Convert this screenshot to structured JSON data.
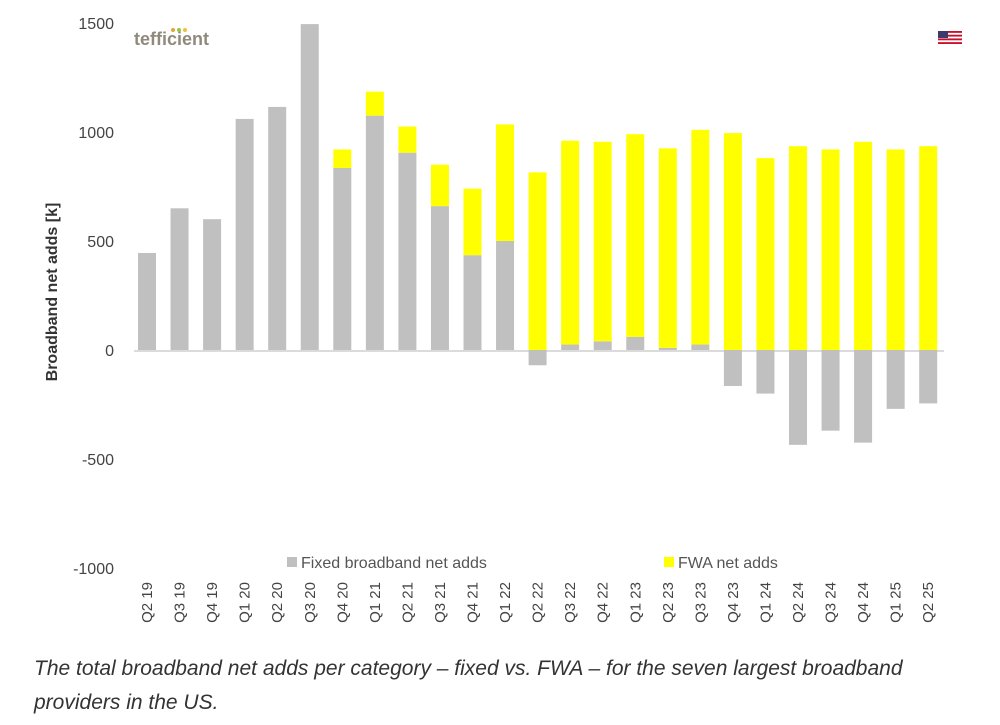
{
  "chart_data": {
    "type": "bar",
    "stacked": true,
    "title": "",
    "xlabel": "",
    "ylabel": "Broadband net adds [k]",
    "ylim": [
      -1000,
      1500
    ],
    "yticks": [
      1500,
      1000,
      500,
      0,
      -500,
      -1000
    ],
    "ytick_labels": [
      "1500",
      "1000",
      "500",
      "0",
      "-500",
      "-1000"
    ],
    "categories": [
      "Q2 19",
      "Q3 19",
      "Q4 19",
      "Q1 20",
      "Q2 20",
      "Q3 20",
      "Q4 20",
      "Q1 21",
      "Q2 21",
      "Q3 21",
      "Q4 21",
      "Q1 22",
      "Q2 22",
      "Q3 22",
      "Q4 22",
      "Q1 23",
      "Q2 23",
      "Q3 23",
      "Q4 23",
      "Q1 24",
      "Q2 24",
      "Q3 24",
      "Q4 24",
      "Q1 25",
      "Q2 25"
    ],
    "series": [
      {
        "name": "Fixed broadband net adds",
        "color": "#c0c0c0",
        "values": [
          445,
          650,
          600,
          1060,
          1115,
          1495,
          835,
          1075,
          905,
          660,
          435,
          500,
          -70,
          25,
          40,
          60,
          10,
          25,
          -165,
          -200,
          -435,
          -370,
          -425,
          -270,
          -245
        ]
      },
      {
        "name": "FWA net adds",
        "color": "#ffff00",
        "values": [
          0,
          0,
          0,
          0,
          0,
          0,
          85,
          110,
          120,
          190,
          305,
          535,
          815,
          935,
          915,
          930,
          915,
          985,
          995,
          880,
          935,
          920,
          955,
          920,
          935
        ]
      }
    ],
    "legend_position": "bottom",
    "grid": false
  },
  "logo": {
    "text": "tefficient"
  },
  "flag": {
    "name": "us-flag-icon"
  },
  "caption": "The total broadband net adds per category – fixed vs. FWA – for the seven largest broadband providers in the US."
}
